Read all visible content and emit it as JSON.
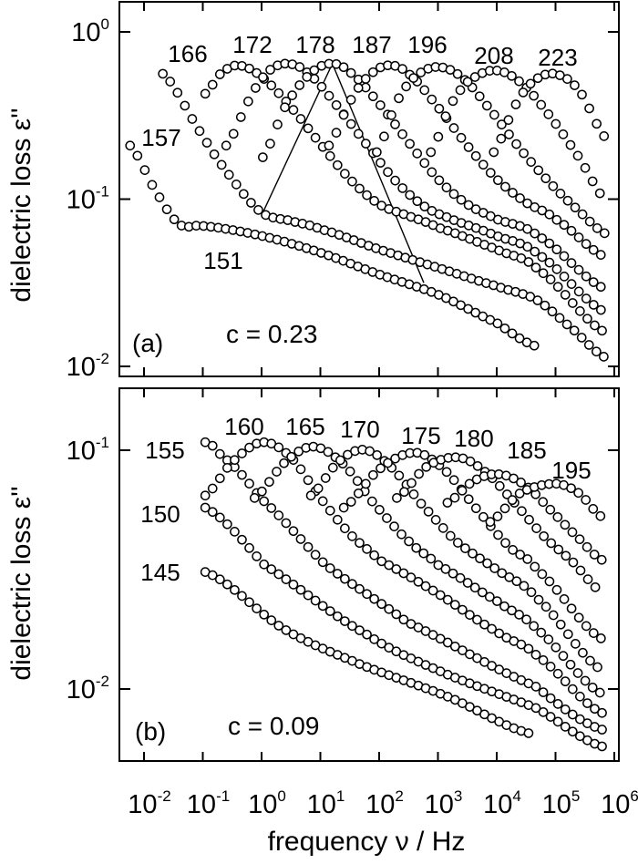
{
  "chart_data": [
    {
      "type": "scatter",
      "panel_label": "(a)",
      "annotation": "c = 0.23",
      "ylabel": "dielectric loss ε''",
      "xlabel": "frequency ν / Hz",
      "x_scale": "log",
      "y_scale": "log",
      "xlim": [
        0.0033,
        1200000
      ],
      "ylim": [
        0.0089,
        1.55
      ],
      "y_ticks": [
        {
          "base": "10",
          "exp": "0"
        },
        {
          "base": "10",
          "exp": "-1"
        },
        {
          "base": "10",
          "exp": "-2"
        }
      ],
      "y_tick_values": [
        1,
        0.1,
        0.01
      ],
      "grid": false,
      "marker": "open-circle",
      "series": [
        {
          "name": "151",
          "x": [
            0.0058,
            0.0158,
            0.0398,
            0.1,
            1,
            10,
            100,
            1000,
            10000,
            47000
          ],
          "y": [
            0.209,
            0.112,
            0.0708,
            0.0692,
            0.0603,
            0.0479,
            0.0355,
            0.0269,
            0.0182,
            0.0132
          ]
        },
        {
          "name": "157",
          "x": [
            0.0209,
            0.1,
            0.316,
            1,
            3.16,
            10,
            100,
            1000,
            10000,
            47000,
            200000,
            740000
          ],
          "y": [
            0.562,
            0.24,
            0.132,
            0.0832,
            0.0741,
            0.0661,
            0.0501,
            0.0389,
            0.0302,
            0.0251,
            0.0166,
            0.0112
          ]
        },
        {
          "name": "166",
          "x": [
            0.11,
            0.2,
            0.4,
            1,
            3.16,
            10,
            31.6,
            100,
            316,
            1000,
            10000,
            50000,
            740000
          ],
          "y": [
            0.427,
            0.562,
            0.631,
            0.537,
            0.355,
            0.214,
            0.132,
            0.0933,
            0.0794,
            0.0676,
            0.0501,
            0.038,
            0.0158
          ]
        },
        {
          "name": "172",
          "x": [
            0.25,
            0.63,
            1.26,
            2.7,
            6.3,
            20,
            63,
            200,
            630,
            2000,
            10000,
            50000,
            740000
          ],
          "y": [
            0.209,
            0.398,
            0.575,
            0.646,
            0.562,
            0.355,
            0.209,
            0.126,
            0.0891,
            0.0741,
            0.0603,
            0.0468,
            0.0209
          ]
        },
        {
          "name": "178",
          "x": [
            1.05,
            2.5,
            6.3,
            14.5,
            31.6,
            100,
            316,
            1000,
            3160,
            10000,
            50000,
            740000
          ],
          "y": [
            0.178,
            0.355,
            0.55,
            0.646,
            0.575,
            0.372,
            0.219,
            0.132,
            0.0933,
            0.0759,
            0.0603,
            0.0288
          ]
        },
        {
          "name": "187",
          "x": [
            14,
            31.6,
            63,
            138,
            316,
            1000,
            3160,
            10000,
            31600,
            100000,
            740000
          ],
          "y": [
            0.209,
            0.38,
            0.537,
            0.631,
            0.562,
            0.355,
            0.209,
            0.132,
            0.0955,
            0.0759,
            0.0447
          ]
        },
        {
          "name": "196",
          "x": [
            91,
            200,
            398,
            955,
            2510,
            7940,
            25000,
            79000,
            250000,
            740000
          ],
          "y": [
            0.191,
            0.38,
            0.537,
            0.617,
            0.537,
            0.339,
            0.2,
            0.126,
            0.0851,
            0.0617
          ]
        },
        {
          "name": "208",
          "x": [
            759,
            1580,
            3160,
            8910,
            25000,
            79000,
            250000,
            740000
          ],
          "y": [
            0.191,
            0.355,
            0.501,
            0.589,
            0.501,
            0.316,
            0.178,
            0.0977
          ]
        },
        {
          "name": "223",
          "x": [
            8910,
            20000,
            40000,
            95000,
            250000,
            740000
          ],
          "y": [
            0.191,
            0.355,
            0.501,
            0.562,
            0.447,
            0.229
          ]
        }
      ],
      "guide_line": {
        "x": [
          1.05,
          16,
          575
        ],
        "y": [
          0.083,
          0.646,
          0.0316
        ]
      }
    },
    {
      "type": "scatter",
      "panel_label": "(b)",
      "annotation": "c = 0.09",
      "ylabel": "dielectric loss ε''",
      "xlabel": "frequency ν / Hz",
      "x_scale": "log",
      "y_scale": "log",
      "xlim": [
        0.0033,
        1200000
      ],
      "ylim": [
        0.005,
        0.18
      ],
      "x_ticks": [
        {
          "base": "10",
          "exp": "-2"
        },
        {
          "base": "10",
          "exp": "-1"
        },
        {
          "base": "10",
          "exp": "0"
        },
        {
          "base": "10",
          "exp": "1"
        },
        {
          "base": "10",
          "exp": "2"
        },
        {
          "base": "10",
          "exp": "3"
        },
        {
          "base": "10",
          "exp": "4"
        },
        {
          "base": "10",
          "exp": "5"
        },
        {
          "base": "10",
          "exp": "6"
        }
      ],
      "y_ticks": [
        {
          "base": "10",
          "exp": "-1"
        },
        {
          "base": "10",
          "exp": "-2"
        }
      ],
      "y_tick_values": [
        0.1,
        0.01
      ],
      "grid": false,
      "marker": "open-circle",
      "series": [
        {
          "name": "145",
          "x": [
            0.11,
            2.45,
            51,
            1450,
            42000
          ],
          "y": [
            0.0309,
            0.0178,
            0.0126,
            0.0093,
            0.00646
          ]
        },
        {
          "name": "150",
          "x": [
            0.11,
            1.12,
            60,
            1450,
            48000,
            620000
          ],
          "y": [
            0.0575,
            0.0331,
            0.017,
            0.0115,
            0.0083,
            0.00575
          ]
        },
        {
          "name": "155",
          "x": [
            0.11,
            0.2,
            0.95,
            12.3,
            295,
            48000,
            620000
          ],
          "y": [
            0.108,
            0.0955,
            0.0631,
            0.0331,
            0.0191,
            0.0102,
            0.00676
          ]
        },
        {
          "name": "160",
          "x": [
            0.11,
            0.316,
            1.02,
            3.16,
            10,
            31.6,
            100,
            1000,
            10000,
            48000,
            620000
          ],
          "y": [
            0.0646,
            0.0891,
            0.108,
            0.0933,
            0.0631,
            0.0447,
            0.0347,
            0.0251,
            0.0174,
            0.0138,
            0.00794
          ]
        },
        {
          "name": "165",
          "x": [
            0.76,
            2.51,
            7.6,
            25,
            79,
            316,
            1000,
            10000,
            48000,
            620000
          ],
          "y": [
            0.0631,
            0.0891,
            0.1035,
            0.0871,
            0.0603,
            0.0417,
            0.0331,
            0.0234,
            0.0178,
            0.00955
          ]
        },
        {
          "name": "170",
          "x": [
            6.9,
            20,
            55,
            158,
            500,
            2000,
            10000,
            48000,
            620000
          ],
          "y": [
            0.0646,
            0.0891,
            0.1005,
            0.0851,
            0.0603,
            0.0417,
            0.0316,
            0.024,
            0.012
          ]
        },
        {
          "name": "175",
          "x": [
            25,
            100,
            407,
            1260,
            3980,
            15800,
            48000,
            620000
          ],
          "y": [
            0.0575,
            0.0832,
            0.0977,
            0.0832,
            0.0589,
            0.0398,
            0.0316,
            0.0162
          ]
        },
        {
          "name": "180",
          "x": [
            200,
            631,
            2190,
            6310,
            20000,
            63000,
            200000,
            620000
          ],
          "y": [
            0.0631,
            0.0851,
            0.0933,
            0.0813,
            0.0603,
            0.0437,
            0.0339,
            0.0254
          ]
        },
        {
          "name": "185",
          "x": [
            1450,
            3980,
            10700,
            31600,
            100000,
            250000,
            620000
          ],
          "y": [
            0.0603,
            0.0741,
            0.0794,
            0.0708,
            0.0537,
            0.0427,
            0.0347
          ]
        },
        {
          "name": "195",
          "x": [
            7760,
            25000,
            100000,
            250000,
            620000
          ],
          "y": [
            0.0501,
            0.0661,
            0.0724,
            0.0661,
            0.0525
          ]
        }
      ]
    }
  ],
  "colors": {
    "marker_stroke": "#000000",
    "marker_fill": "#ffffff",
    "axes": "#000000"
  }
}
